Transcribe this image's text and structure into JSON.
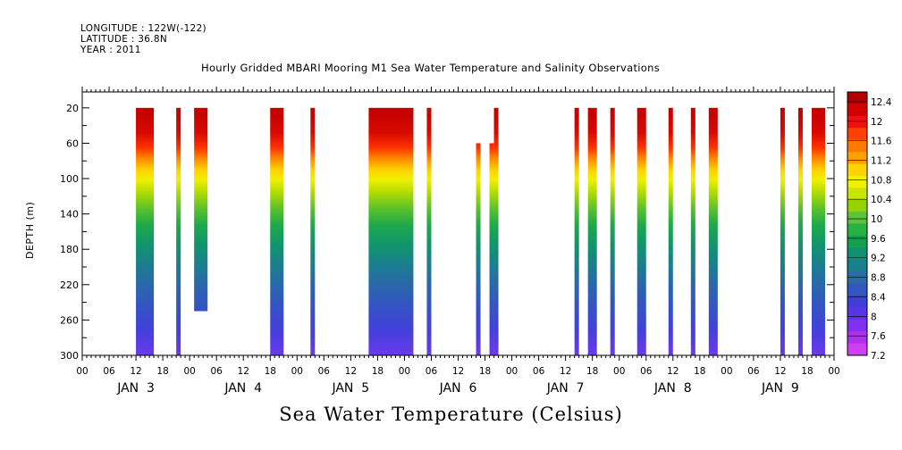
{
  "header": {
    "longitude": "LONGITUDE : 122W(-122)",
    "latitude": "LATITUDE : 36.8N",
    "year": "YEAR : 2011"
  },
  "chart_data": {
    "type": "heatmap",
    "title": "Hourly Gridded MBARI Mooring M1 Sea Water Temperature and Salinity Observations",
    "ylabel": "DEPTH (m)",
    "colorbar_title": "Sea Water Temperature (Celsius)",
    "y_axis": {
      "ticks": [
        20,
        60,
        100,
        140,
        180,
        220,
        260,
        300
      ],
      "range": [
        2,
        300
      ],
      "inverted": true
    },
    "x_axis": {
      "range_hours": [
        0,
        168
      ],
      "hour_labels": [
        "00",
        "06",
        "12",
        "18",
        "00",
        "06",
        "12",
        "18",
        "00",
        "06",
        "12",
        "18",
        "00",
        "06",
        "12",
        "18",
        "00",
        "06",
        "12",
        "18",
        "00",
        "06",
        "12",
        "18",
        "00",
        "06",
        "12",
        "18",
        "00"
      ],
      "day_labels": [
        "JAN  3",
        "JAN  4",
        "JAN  5",
        "JAN  6",
        "JAN  7",
        "JAN  8",
        "JAN  9"
      ]
    },
    "colorbar": {
      "labels": [
        "12.4",
        "12",
        "11.6",
        "11.2",
        "10.8",
        "10.4",
        "10",
        "9.6",
        "9.2",
        "8.8",
        "8.4",
        "8",
        "7.6",
        "7.2"
      ],
      "range": [
        7.2,
        12.6
      ],
      "colors": [
        "#b00000",
        "#d40000",
        "#f01010",
        "#ff4000",
        "#ff7800",
        "#ffa000",
        "#ffd200",
        "#f0f000",
        "#c8e600",
        "#96d200",
        "#5ac23c",
        "#28b040",
        "#10a050",
        "#109070",
        "#1a7f8c",
        "#2a6aa8",
        "#3454c0",
        "#3d40d8",
        "#5a35e8",
        "#8030f0",
        "#b030f0",
        "#d040f0"
      ]
    },
    "columns": [
      {
        "start_hour": 12.0,
        "end_hour": 16.0,
        "top_depth": 20,
        "bottom_depth": 300
      },
      {
        "start_hour": 21.0,
        "end_hour": 22.0,
        "top_depth": 20,
        "bottom_depth": 300
      },
      {
        "start_hour": 25.0,
        "end_hour": 28.0,
        "top_depth": 20,
        "bottom_depth": 250
      },
      {
        "start_hour": 42.0,
        "end_hour": 45.0,
        "top_depth": 20,
        "bottom_depth": 300
      },
      {
        "start_hour": 51.0,
        "end_hour": 52.0,
        "top_depth": 20,
        "bottom_depth": 300
      },
      {
        "start_hour": 64.0,
        "end_hour": 74.0,
        "top_depth": 20,
        "bottom_depth": 300
      },
      {
        "start_hour": 77.0,
        "end_hour": 78.0,
        "top_depth": 20,
        "bottom_depth": 300
      },
      {
        "start_hour": 88.0,
        "end_hour": 89.0,
        "top_depth": 60,
        "bottom_depth": 300
      },
      {
        "start_hour": 91.0,
        "end_hour": 92.0,
        "top_depth": 60,
        "bottom_depth": 300
      },
      {
        "start_hour": 92.0,
        "end_hour": 93.0,
        "top_depth": 20,
        "bottom_depth": 300
      },
      {
        "start_hour": 110.0,
        "end_hour": 111.0,
        "top_depth": 20,
        "bottom_depth": 300
      },
      {
        "start_hour": 113.0,
        "end_hour": 115.0,
        "top_depth": 20,
        "bottom_depth": 300
      },
      {
        "start_hour": 118.0,
        "end_hour": 119.0,
        "top_depth": 20,
        "bottom_depth": 300
      },
      {
        "start_hour": 124.0,
        "end_hour": 126.0,
        "top_depth": 20,
        "bottom_depth": 300
      },
      {
        "start_hour": 131.0,
        "end_hour": 132.0,
        "top_depth": 20,
        "bottom_depth": 300
      },
      {
        "start_hour": 136.0,
        "end_hour": 137.0,
        "top_depth": 20,
        "bottom_depth": 300
      },
      {
        "start_hour": 140.0,
        "end_hour": 142.0,
        "top_depth": 20,
        "bottom_depth": 300
      },
      {
        "start_hour": 156.0,
        "end_hour": 157.0,
        "top_depth": 20,
        "bottom_depth": 300
      },
      {
        "start_hour": 160.0,
        "end_hour": 161.0,
        "top_depth": 20,
        "bottom_depth": 300
      },
      {
        "start_hour": 163.0,
        "end_hour": 166.0,
        "top_depth": 20,
        "bottom_depth": 300
      }
    ]
  }
}
